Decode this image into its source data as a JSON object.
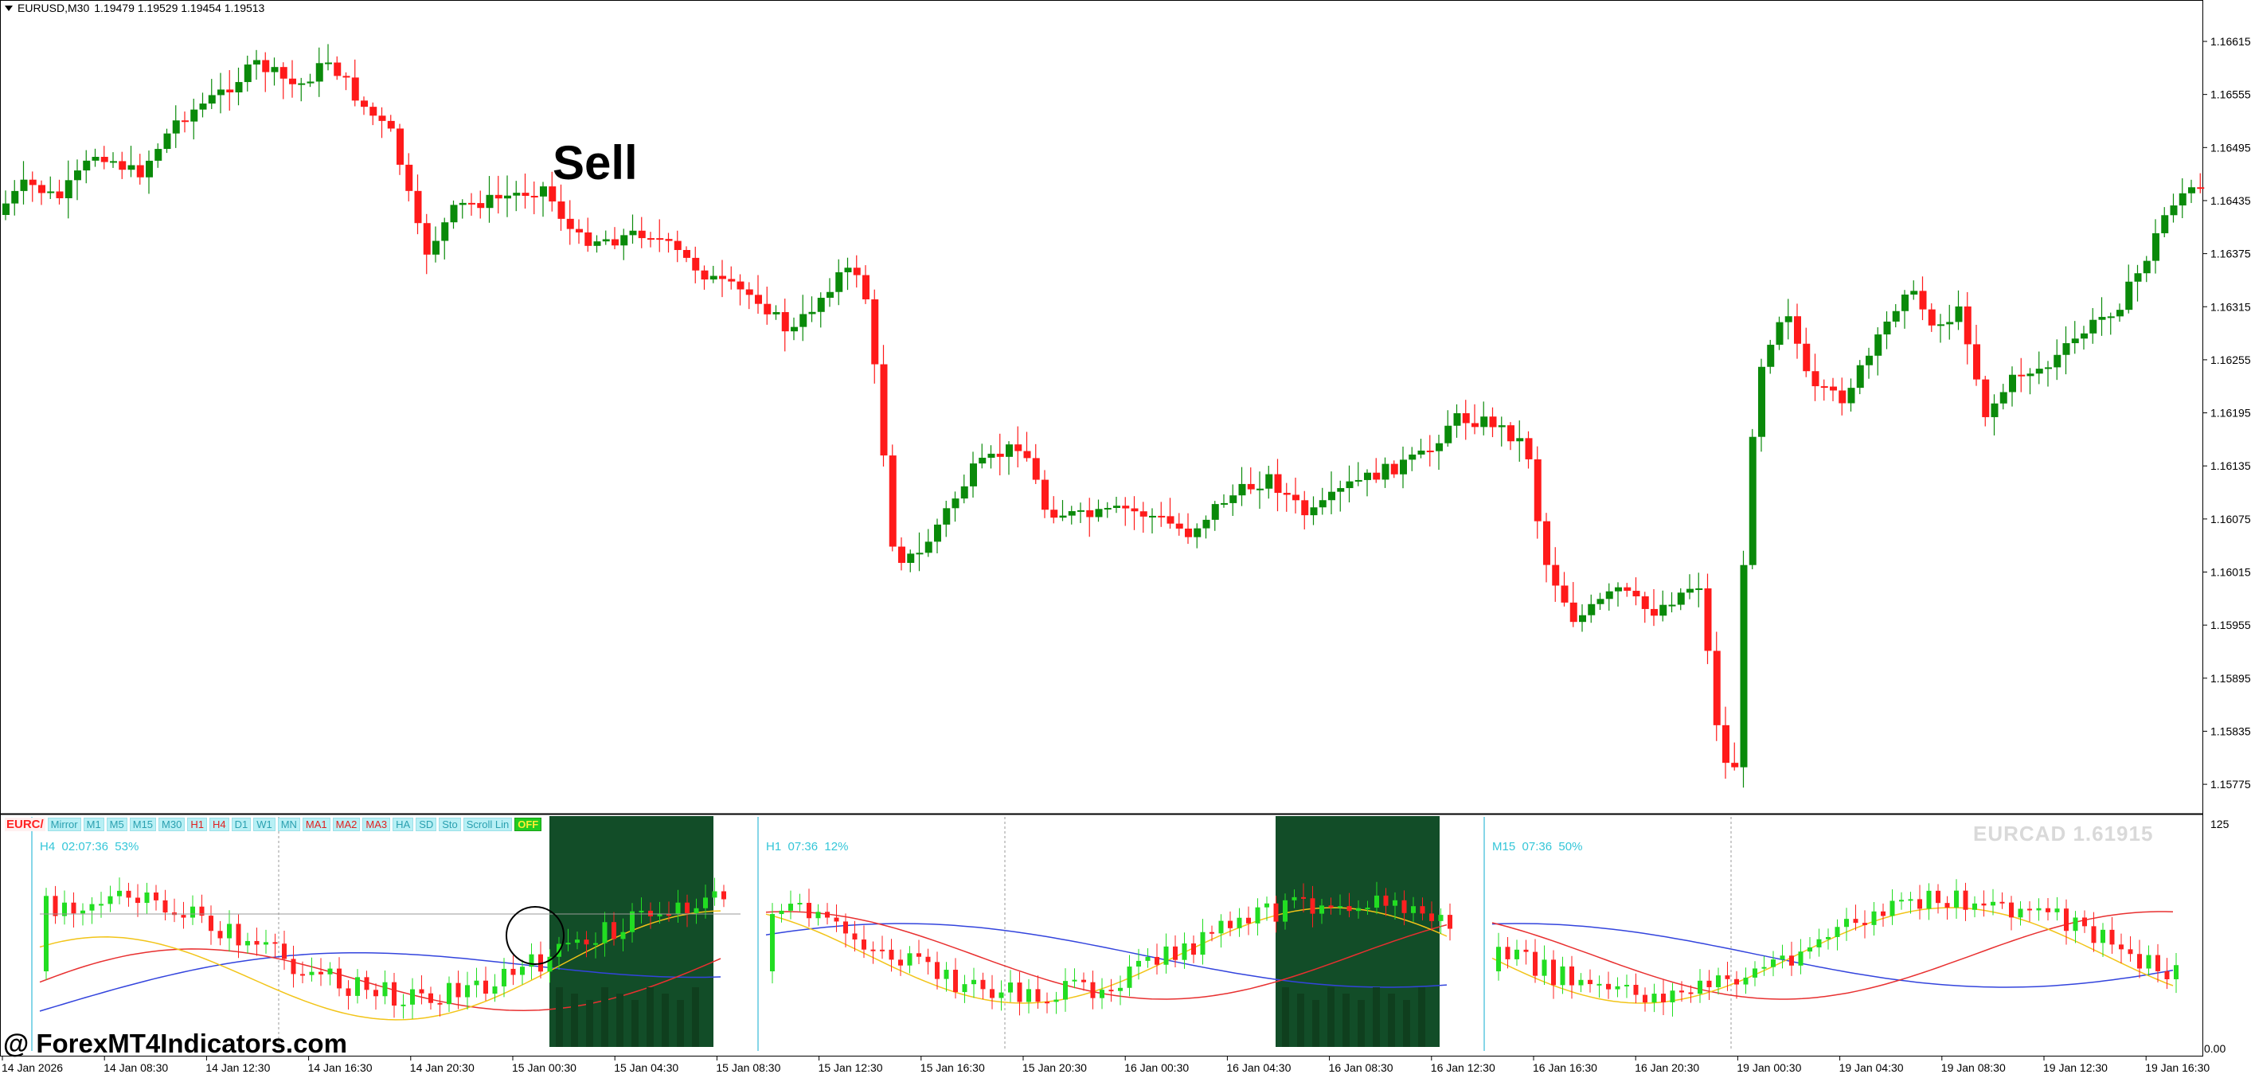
{
  "header": {
    "symbol": "EURUSD,M30",
    "ohlc": "1.19479 1.19529 1.19454 1.19513"
  },
  "annotation_text": "Sell",
  "watermark": "@ ForexMT4Indicators.com",
  "price_axis": [
    "1.16615",
    "1.16555",
    "1.16495",
    "1.16435",
    "1.16375",
    "1.16315",
    "1.16255",
    "1.16195",
    "1.16135",
    "1.16075",
    "1.16015",
    "1.15955",
    "1.15895",
    "1.15835",
    "1.15775"
  ],
  "sub_axis": {
    "top": "125",
    "bottom": "0.00"
  },
  "time_axis": [
    "14 Jan 2026",
    "14 Jan 08:30",
    "14 Jan 12:30",
    "14 Jan 16:30",
    "14 Jan 20:30",
    "15 Jan 00:30",
    "15 Jan 04:30",
    "15 Jan 08:30",
    "15 Jan 12:30",
    "15 Jan 16:30",
    "15 Jan 20:30",
    "16 Jan 00:30",
    "16 Jan 04:30",
    "16 Jan 08:30",
    "16 Jan 12:30",
    "16 Jan 16:30",
    "16 Jan 20:30",
    "19 Jan 00:30",
    "19 Jan 04:30",
    "19 Jan 08:30",
    "19 Jan 12:30",
    "19 Jan 16:30"
  ],
  "sub_window": {
    "symbol_button": "EURC/",
    "buttons": [
      "Mirror",
      "M1",
      "M5",
      "M15",
      "M30",
      "H1",
      "H4",
      "D1",
      "W1",
      "MN",
      "MA1",
      "MA2",
      "MA3",
      "HA",
      "SD",
      "Sto",
      "Scroll Lin",
      "OFF"
    ],
    "ticker": "EURCAD  1.61915",
    "panels": [
      {
        "tf": "H4",
        "timer": "02:07:36",
        "pct": "53%"
      },
      {
        "tf": "H1",
        "timer": "07:36",
        "pct": "12%"
      },
      {
        "tf": "M15",
        "timer": "07:36",
        "pct": "50%"
      }
    ]
  },
  "colors": {
    "bull": "#0a8a0a",
    "bear": "#ff1a1a",
    "shade": "#124d28",
    "ma_blue": "#3344dd",
    "ma_red": "#e83030",
    "ma_yellow": "#f2c418",
    "cyan": "#34c6d8"
  }
}
